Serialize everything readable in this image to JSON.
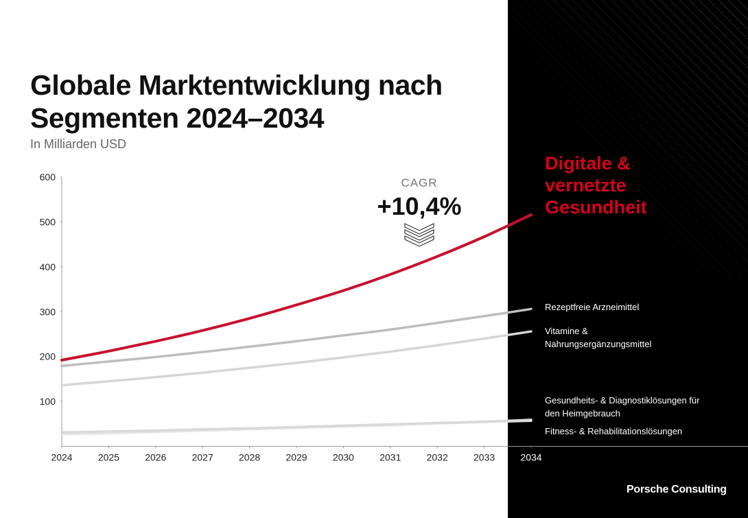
{
  "chart_data": {
    "type": "line",
    "title": "Globale Marktentwicklung nach Segmenten 2024–2034",
    "subtitle": "In Milliarden USD",
    "x": [
      2024,
      2025,
      2026,
      2027,
      2028,
      2029,
      2030,
      2031,
      2032,
      2033,
      2034
    ],
    "xlim": [
      2024,
      2034
    ],
    "xticks": [
      2024,
      2025,
      2026,
      2027,
      2028,
      2029,
      2030,
      2031,
      2032,
      2033,
      2034
    ],
    "ylim": [
      0,
      600
    ],
    "yticks": [
      100,
      200,
      300,
      400,
      500,
      600
    ],
    "grid": false,
    "series": [
      {
        "name": "Fitness- & Rehabilitationslösungen",
        "color": "#e6e6e6",
        "values": [
          27,
          29,
          32,
          35,
          38,
          41,
          44,
          47,
          51,
          54,
          57
        ]
      },
      {
        "name": "Gesundheits- & Diagnostiklösungen für den Heimgebrauch",
        "color": "#d9d9d9",
        "values": [
          31,
          33,
          35,
          38,
          40,
          43,
          46,
          49,
          52,
          55,
          59
        ]
      },
      {
        "name": "Vitamine & Nahrungsergänzungsmittel",
        "color": "#d6d6d6",
        "values": [
          136,
          145,
          154,
          164,
          175,
          186,
          198,
          211,
          225,
          240,
          256
        ]
      },
      {
        "name": "Rezeptfreie Arzneimittel",
        "color": "#bdbdbd",
        "values": [
          179,
          189,
          199,
          210,
          222,
          234,
          247,
          260,
          275,
          290,
          306
        ]
      },
      {
        "name": "Digitale & vernetzte Gesundheit",
        "color": "#c8102e",
        "values": [
          192,
          212,
          234,
          258,
          285,
          315,
          347,
          383,
          423,
          467,
          516
        ]
      }
    ],
    "annotations": [
      "CAGR",
      "+10,4%"
    ],
    "brand": "Porsche Consulting"
  }
}
